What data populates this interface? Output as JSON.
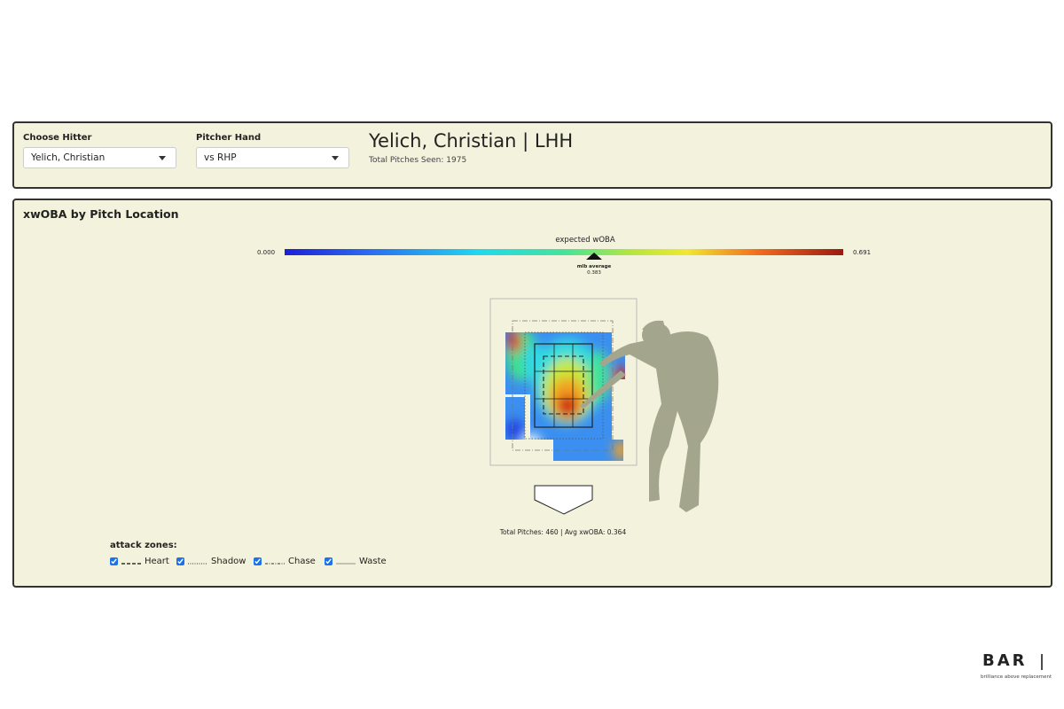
{
  "controls": {
    "hitter_label": "Choose Hitter",
    "hitter_value": "Yelich, Christian",
    "hand_label": "Pitcher Hand",
    "hand_value": "vs RHP"
  },
  "header": {
    "title": "Yelich, Christian | LHH",
    "subtitle": "Total Pitches Seen: 1975"
  },
  "panel": {
    "title": "xwOBA by Pitch Location"
  },
  "colorbar": {
    "title": "expected wOBA",
    "min_label": "0.000",
    "max_label": "0.691",
    "marker_label": "mlb average",
    "marker_value": "0.383"
  },
  "summary": "Total Pitches: 460 | Avg xwOBA: 0.364",
  "attack_zones": {
    "title": "attack zones:",
    "items": [
      "Heart",
      "Shadow",
      "Chase",
      "Waste"
    ]
  },
  "logo": {
    "name": "BAR",
    "tagline": "brilliance above replacement"
  }
}
